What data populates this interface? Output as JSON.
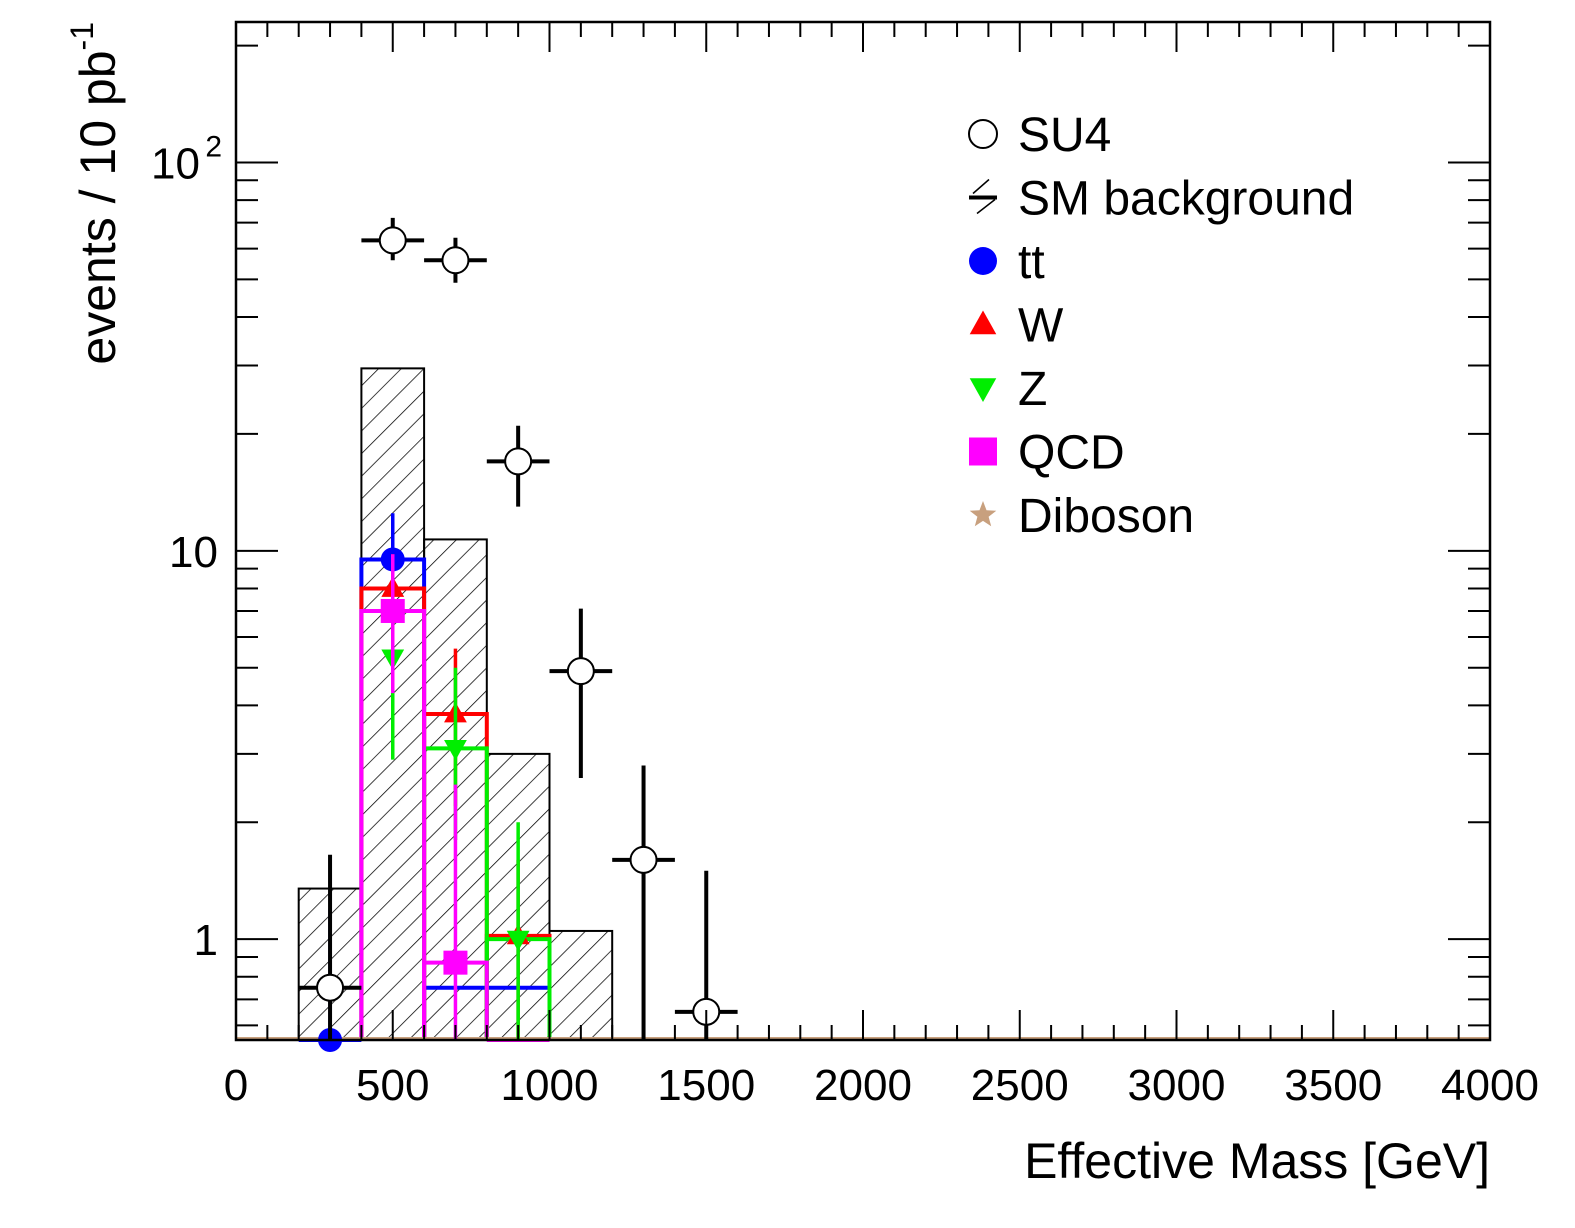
{
  "chart_data": {
    "type": "histogram",
    "ylog": true,
    "xlabel": "Effective Mass [GeV]",
    "ylabel": {
      "main": "events / 10 pb",
      "sup": "-1"
    },
    "xlim": [
      0,
      4000
    ],
    "ylim": [
      0.55,
      230
    ],
    "xticks": [
      0,
      500,
      1000,
      1500,
      2000,
      2500,
      3000,
      3500,
      4000
    ],
    "xtick_labels": [
      "0",
      "500",
      "1000",
      "1500",
      "2000",
      "2500",
      "3000",
      "3500",
      "4000"
    ],
    "yticks": [
      {
        "value": 1,
        "label": "1",
        "sup": ""
      },
      {
        "value": 10,
        "label": "10",
        "sup": ""
      },
      {
        "value": 100,
        "label": "10",
        "sup": "2"
      }
    ],
    "legend_position": "top-right",
    "legend": [
      {
        "label": "SU4",
        "marker": "open-circle",
        "color": "#000000"
      },
      {
        "label": "SM background",
        "marker": "hatch",
        "color": "#000000"
      },
      {
        "label": "tt",
        "marker": "circle",
        "color": "#0000ff"
      },
      {
        "label": "W",
        "marker": "triangle-up",
        "color": "#ff0000"
      },
      {
        "label": "Z",
        "marker": "triangle-down",
        "color": "#00ee00"
      },
      {
        "label": "QCD",
        "marker": "square",
        "color": "#ff00ff"
      },
      {
        "label": "Diboson",
        "marker": "star",
        "color": "#c8a07e"
      }
    ],
    "sm_background": {
      "bins": [
        [
          200,
          400
        ],
        [
          400,
          600
        ],
        [
          600,
          800
        ],
        [
          800,
          1000
        ],
        [
          1000,
          1200
        ]
      ],
      "values": [
        1.35,
        29.5,
        10.7,
        3.0,
        1.05
      ]
    },
    "series": [
      {
        "name": "tt",
        "color": "#0000ff",
        "marker": "circle",
        "step": [
          [
            200,
            400,
            0.5
          ],
          [
            400,
            600,
            9.5
          ],
          [
            600,
            800,
            0.75
          ],
          [
            800,
            1000,
            0.75
          ]
        ],
        "points": [
          {
            "x": 300,
            "y": 0.5,
            "ylo": 0.5,
            "yhi": 1.2
          },
          {
            "x": 500,
            "y": 9.5,
            "ylo": 4.2,
            "yhi": 12.5
          }
        ]
      },
      {
        "name": "W",
        "color": "#ff0000",
        "marker": "triangle-up",
        "step": [
          [
            400,
            600,
            8.0
          ],
          [
            600,
            800,
            3.8
          ],
          [
            800,
            1000,
            1.02
          ]
        ],
        "points": [
          {
            "x": 500,
            "y": 8.0,
            "ylo": 5.5,
            "yhi": 9.8
          },
          {
            "x": 700,
            "y": 3.8,
            "ylo": 2.2,
            "yhi": 5.6
          },
          {
            "x": 900,
            "y": 1.02,
            "ylo": 0.5,
            "yhi": 1.6
          }
        ]
      },
      {
        "name": "Z",
        "color": "#00ee00",
        "marker": "triangle-down",
        "step": [
          [
            600,
            800,
            3.1
          ],
          [
            800,
            1000,
            1.0
          ]
        ],
        "points": [
          {
            "x": 500,
            "y": 5.3,
            "ylo": 2.9,
            "yhi": 7.8
          },
          {
            "x": 700,
            "y": 3.1,
            "ylo": 1.8,
            "yhi": 5.0
          },
          {
            "x": 900,
            "y": 1.0,
            "ylo": 0.5,
            "yhi": 2.0
          }
        ]
      },
      {
        "name": "QCD",
        "color": "#ff00ff",
        "marker": "square",
        "step": [
          [
            400,
            600,
            7.0
          ],
          [
            600,
            800,
            0.87
          ],
          [
            800,
            1000,
            0.55
          ]
        ],
        "points": [
          {
            "x": 500,
            "y": 7.0,
            "ylo": 4.3,
            "yhi": 9.8
          },
          {
            "x": 700,
            "y": 0.87,
            "ylo": 0.5,
            "yhi": 2.5
          }
        ]
      },
      {
        "name": "Diboson",
        "color": "#c8a07e",
        "marker": "star",
        "step": [],
        "points": []
      },
      {
        "name": "SU4",
        "color": "#000000",
        "marker": "open-circle",
        "step": [],
        "points": [
          {
            "x": 300,
            "y": 0.75,
            "ylo": 0.5,
            "yhi": 1.65
          },
          {
            "x": 500,
            "y": 63,
            "ylo": 56,
            "yhi": 72
          },
          {
            "x": 700,
            "y": 56,
            "ylo": 49,
            "yhi": 64
          },
          {
            "x": 900,
            "y": 17,
            "ylo": 13,
            "yhi": 21
          },
          {
            "x": 1100,
            "y": 4.9,
            "ylo": 2.6,
            "yhi": 7.1
          },
          {
            "x": 1300,
            "y": 1.6,
            "ylo": 0.5,
            "yhi": 2.8
          },
          {
            "x": 1500,
            "y": 0.65,
            "ylo": 0.5,
            "yhi": 1.5
          }
        ]
      }
    ]
  }
}
